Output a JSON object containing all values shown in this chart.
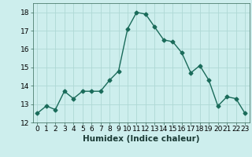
{
  "x": [
    0,
    1,
    2,
    3,
    4,
    5,
    6,
    7,
    8,
    9,
    10,
    11,
    12,
    13,
    14,
    15,
    16,
    17,
    18,
    19,
    20,
    21,
    22,
    23
  ],
  "y": [
    12.5,
    12.9,
    12.7,
    13.7,
    13.3,
    13.7,
    13.7,
    13.7,
    14.3,
    14.8,
    17.1,
    18.0,
    17.9,
    17.2,
    16.5,
    16.4,
    15.8,
    14.7,
    15.1,
    14.3,
    12.9,
    13.4,
    13.3,
    12.5
  ],
  "line_color": "#1a6b5a",
  "marker": "D",
  "marker_size": 2.5,
  "background_color": "#cdeeed",
  "grid_color": "#aed8d5",
  "xlabel": "Humidex (Indice chaleur)",
  "ylim": [
    12,
    18.5
  ],
  "xlim": [
    -0.5,
    23.5
  ],
  "xticks": [
    0,
    1,
    2,
    3,
    4,
    5,
    6,
    7,
    8,
    9,
    10,
    11,
    12,
    13,
    14,
    15,
    16,
    17,
    18,
    19,
    20,
    21,
    22,
    23
  ],
  "yticks": [
    12,
    13,
    14,
    15,
    16,
    17,
    18
  ],
  "tick_label_fontsize": 6.5,
  "xlabel_fontsize": 7.5,
  "line_width": 1.0
}
